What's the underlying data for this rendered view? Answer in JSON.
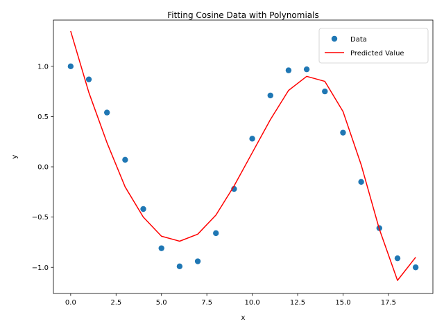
{
  "chart_data": {
    "type": "scatter",
    "title": "Fitting Cosine Data with Polynomials",
    "xlabel": "x",
    "ylabel": "y",
    "xlim": [
      -0.95,
      19.95
    ],
    "ylim": [
      -1.26,
      1.46
    ],
    "x_ticks": [
      0.0,
      2.5,
      5.0,
      7.5,
      10.0,
      12.5,
      15.0,
      17.5
    ],
    "x_tick_labels": [
      "0.0",
      "2.5",
      "5.0",
      "7.5",
      "10.0",
      "12.5",
      "15.0",
      "17.5"
    ],
    "y_ticks": [
      -1.0,
      -0.5,
      0.0,
      0.5,
      1.0
    ],
    "y_tick_labels": [
      "−1.0",
      "−0.5",
      "0.0",
      "0.5",
      "1.0"
    ],
    "grid": false,
    "legend_position": "top-right",
    "x": [
      0,
      1,
      2,
      3,
      4,
      5,
      6,
      7,
      8,
      9,
      10,
      11,
      12,
      13,
      14,
      15,
      16,
      17,
      18,
      19
    ],
    "series": [
      {
        "name": "Data",
        "kind": "scatter",
        "color": "#1f77b4",
        "values": [
          1.0,
          0.87,
          0.54,
          0.07,
          -0.42,
          -0.81,
          -0.99,
          -0.94,
          -0.66,
          -0.22,
          0.28,
          0.71,
          0.96,
          0.97,
          0.75,
          0.34,
          -0.15,
          -0.61,
          -0.91,
          -1.0
        ]
      },
      {
        "name": "Predicted Value",
        "kind": "line",
        "color": "#ff0000",
        "values": [
          1.35,
          0.74,
          0.24,
          -0.2,
          -0.5,
          -0.69,
          -0.74,
          -0.67,
          -0.48,
          -0.19,
          0.14,
          0.47,
          0.76,
          0.9,
          0.85,
          0.55,
          0.02,
          -0.62,
          -1.13,
          -0.9
        ]
      }
    ]
  }
}
